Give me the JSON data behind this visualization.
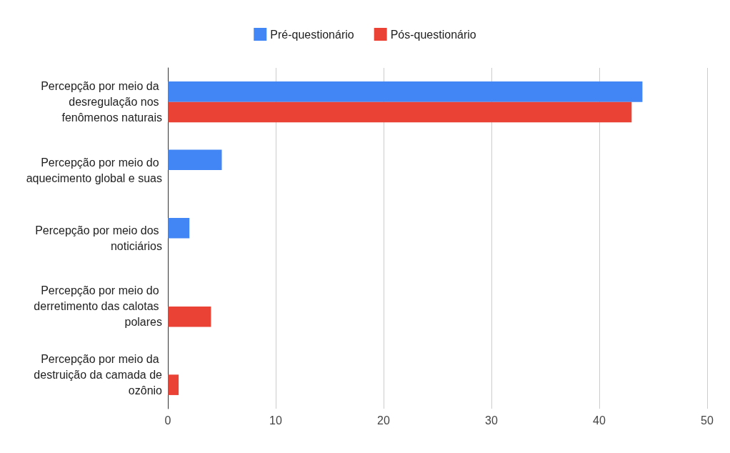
{
  "chart_data": {
    "type": "bar",
    "orientation": "horizontal",
    "categories": [
      "Percepção por meio da desregulação nos fenômenos naturais",
      "Percepção por meio do aquecimento global e suas",
      "Percepção por meio dos noticiários",
      "Percepção por meio do derretimento das calotas polares",
      "Percepção por meio da destruição da camada de ozônio"
    ],
    "series": [
      {
        "name": "Pré-questionário",
        "color": "#4285f4",
        "values": [
          44,
          5,
          2,
          0,
          0
        ]
      },
      {
        "name": "Pós-questionário",
        "color": "#ea4335",
        "values": [
          43,
          0,
          0,
          4,
          1
        ]
      }
    ],
    "xlim": [
      0,
      50
    ],
    "xticks": [
      0,
      10,
      20,
      30,
      40,
      50
    ],
    "grid": "x",
    "legend": "top"
  }
}
